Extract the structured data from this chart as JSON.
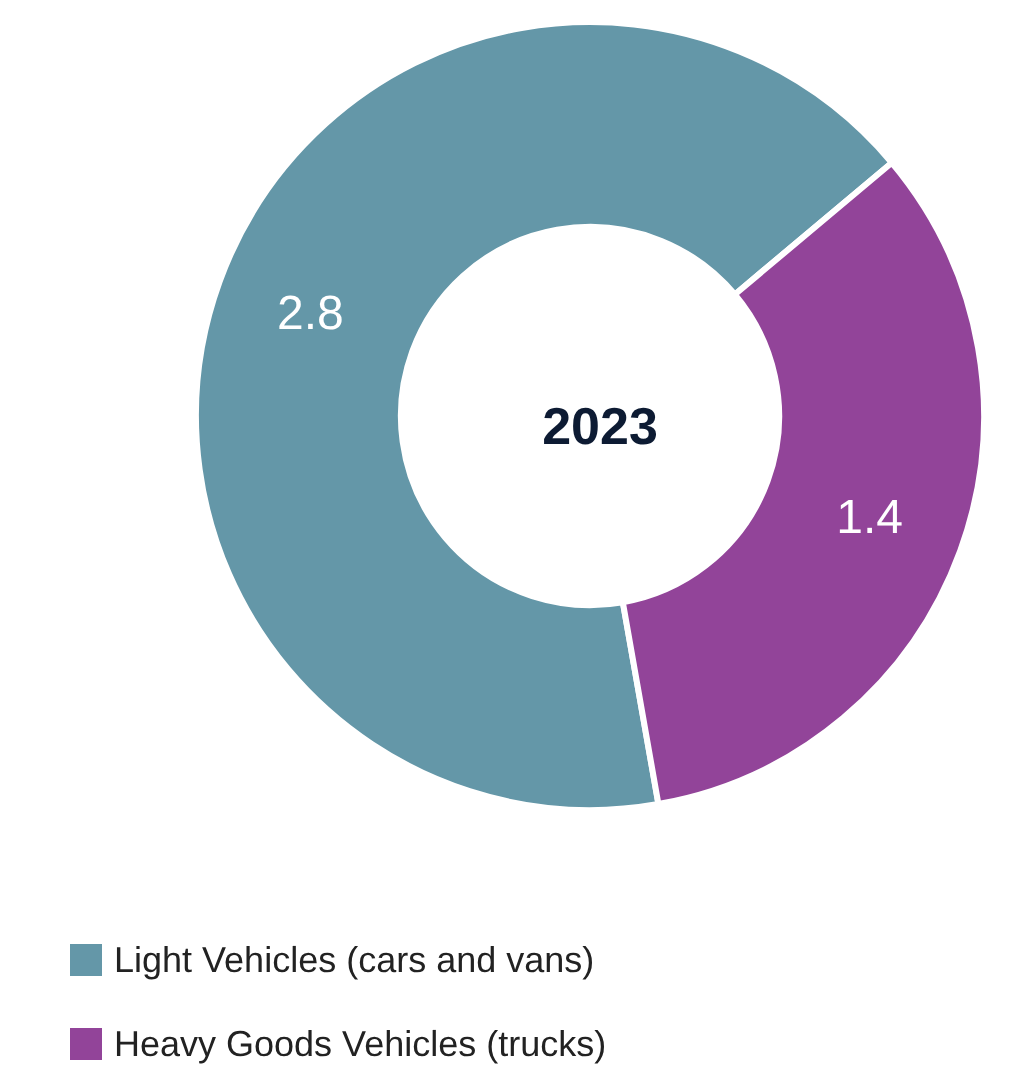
{
  "chart_data": {
    "type": "donut",
    "title": "2023",
    "categories": [
      "Light Vehicles (cars and vans)",
      "Heavy Goods Vehicles (trucks)"
    ],
    "values": [
      2.8,
      1.4
    ],
    "colors": [
      "#6497a8",
      "#924499"
    ],
    "data_labels": true,
    "legend": "bottom left"
  }
}
